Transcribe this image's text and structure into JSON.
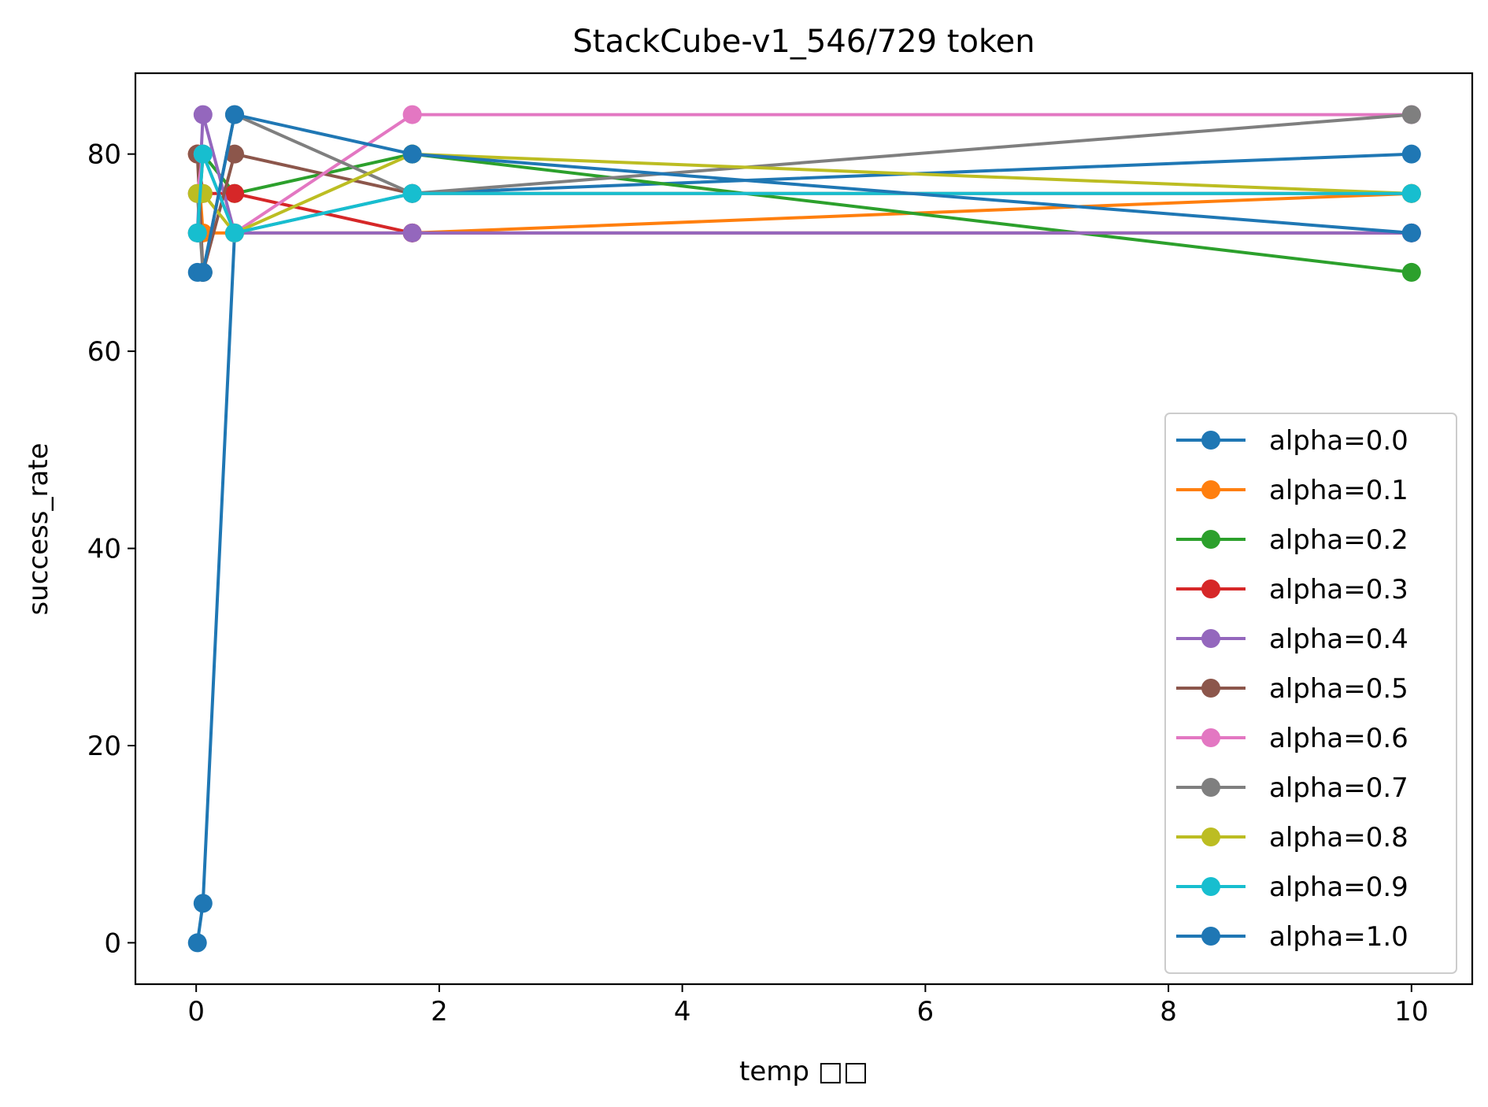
{
  "chart_data": {
    "type": "line",
    "title": "StackCube-v1_546/729 token",
    "xlabel": "temp □□",
    "ylabel": "success_rate",
    "xlim": [
      -0.5,
      10.5
    ],
    "ylim": [
      -4.2,
      88.2
    ],
    "x_ticks": [
      0,
      2,
      4,
      6,
      8,
      10
    ],
    "x_tick_labels": [
      "0",
      "2",
      "4",
      "6",
      "8",
      "10"
    ],
    "y_ticks": [
      0,
      20,
      40,
      60,
      80
    ],
    "y_tick_labels": [
      "0",
      "20",
      "40",
      "60",
      "80"
    ],
    "grid": false,
    "legend_position": "lower right",
    "x": [
      0.01,
      0.056,
      0.316,
      1.778,
      10.0
    ],
    "series": [
      {
        "name": "alpha=0.0",
        "color": "#1f77b4",
        "values": [
          0,
          4,
          72,
          76,
          80
        ]
      },
      {
        "name": "alpha=0.1",
        "color": "#ff7f0e",
        "values": [
          80,
          72,
          72,
          72,
          76
        ]
      },
      {
        "name": "alpha=0.2",
        "color": "#2ca02c",
        "values": [
          72,
          80,
          76,
          80,
          68
        ]
      },
      {
        "name": "alpha=0.3",
        "color": "#d62728",
        "values": [
          80,
          76,
          76,
          72,
          72
        ]
      },
      {
        "name": "alpha=0.4",
        "color": "#9467bd",
        "values": [
          72,
          84,
          72,
          72,
          72
        ]
      },
      {
        "name": "alpha=0.5",
        "color": "#8c564b",
        "values": [
          80,
          68,
          80,
          76,
          76
        ]
      },
      {
        "name": "alpha=0.6",
        "color": "#e377c2",
        "values": [
          76,
          80,
          72,
          84,
          84
        ]
      },
      {
        "name": "alpha=0.7",
        "color": "#7f7f7f",
        "values": [
          76,
          68,
          84,
          76,
          84
        ]
      },
      {
        "name": "alpha=0.8",
        "color": "#bcbd22",
        "values": [
          76,
          76,
          72,
          80,
          76
        ]
      },
      {
        "name": "alpha=0.9",
        "color": "#17becf",
        "values": [
          72,
          80,
          72,
          76,
          76
        ]
      },
      {
        "name": "alpha=1.0",
        "color": "#1f77b4",
        "values": [
          68,
          68,
          84,
          80,
          72
        ]
      }
    ]
  }
}
